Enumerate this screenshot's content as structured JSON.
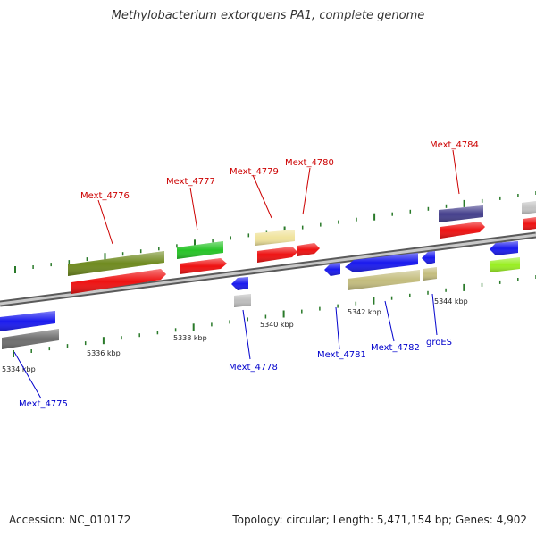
{
  "title": "Methylobacterium extorquens PA1, complete genome",
  "footer": {
    "accession": "Accession: NC_010172",
    "summary": "Topology: circular; Length: 5,471,154 bp; Genes: 4,902"
  },
  "colors": {
    "forward_label": "#cc0000",
    "reverse_label": "#0000cc",
    "backbone": "#9a9a9a",
    "tick": "#2a7a2a"
  },
  "scale_labels": [
    {
      "text": "5334 kbp",
      "kbp": 5334
    },
    {
      "text": "5336 kbp",
      "kbp": 5336
    },
    {
      "text": "5338 kbp",
      "kbp": 5338
    },
    {
      "text": "5340 kbp",
      "kbp": 5340
    },
    {
      "text": "5342 kbp",
      "kbp": 5342
    },
    {
      "text": "5344 kbp",
      "kbp": 5344
    }
  ],
  "genes": [
    {
      "label": "Mext_4775",
      "strand": "reverse",
      "color": "#1a1aee"
    },
    {
      "label": "Mext_4776",
      "strand": "forward",
      "color": "#ee1111"
    },
    {
      "label": "Mext_4777",
      "strand": "forward",
      "color": "#ee1111"
    },
    {
      "label": "Mext_4778",
      "strand": "reverse",
      "color": "#1a1aee"
    },
    {
      "label": "Mext_4779",
      "strand": "forward",
      "color": "#ee1111"
    },
    {
      "label": "Mext_4780",
      "strand": "forward",
      "color": "#ee1111"
    },
    {
      "label": "Mext_4781",
      "strand": "reverse",
      "color": "#1a1aee"
    },
    {
      "label": "Mext_4782",
      "strand": "reverse",
      "color": "#1a1aee"
    },
    {
      "label": "groES",
      "strand": "reverse",
      "color": "#1a1aee"
    },
    {
      "label": "Mext_4784",
      "strand": "forward",
      "color": "#ee1111"
    }
  ]
}
